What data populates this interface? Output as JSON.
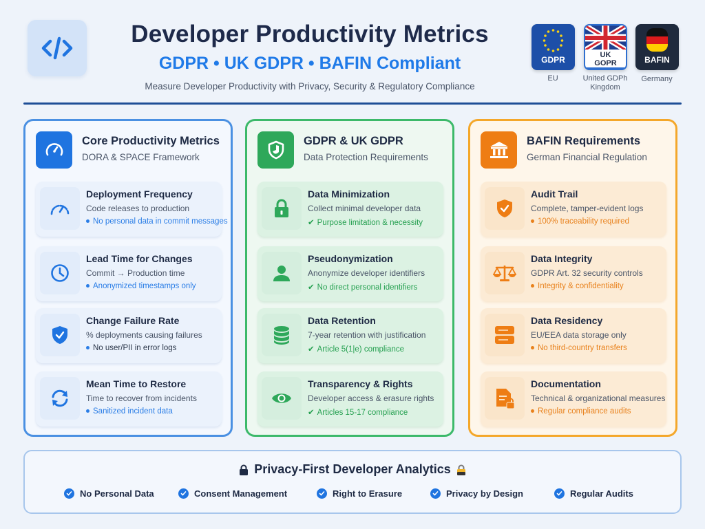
{
  "header": {
    "title": "Developer Productivity Metrics",
    "subtitle": "GDPR • UK GDPR • BAFIN Compliant",
    "tagline": "Measure Developer Productivity with Privacy, Security & Regulatory Compliance",
    "logo_icon": "code-brackets-icon"
  },
  "flags": [
    {
      "label": "GDPR",
      "caption": "EU",
      "icon": "eu-flag-icon"
    },
    {
      "label": "UK GOPR",
      "caption": "United GDPh Kingdom",
      "icon": "uk-flag-icon"
    },
    {
      "label": "BAFIN",
      "caption": "Germany",
      "icon": "germany-flag-icon"
    }
  ],
  "columns": [
    {
      "title": "Core Productivity Metrics",
      "subtitle": "DORA & SPACE Framework",
      "icon": "speedometer-icon",
      "accent": "#1f74e0",
      "cards": [
        {
          "title": "Deployment Frequency",
          "desc": "Code releases to production",
          "note": "No personal data in commit messages",
          "icon": "gauge-icon"
        },
        {
          "title": "Lead Time for Changes",
          "desc": "Commit → Production time",
          "note": "Anonymized timestamps only",
          "icon": "clock-icon"
        },
        {
          "title": "Change Failure Rate",
          "desc": "% deployments causing failures",
          "note": "No user/PII in error logs",
          "icon": "shield-check-icon"
        },
        {
          "title": "Mean Time to Restore",
          "desc": "Time to recover from incidents",
          "note": "Sanitized incident data",
          "icon": "refresh-icon"
        }
      ]
    },
    {
      "title": "GDPR & UK GDPR",
      "subtitle": "Data Protection Requirements",
      "icon": "shield-icon",
      "accent": "#2ea85a",
      "cards": [
        {
          "title": "Data Minimization",
          "desc": "Collect minimal developer data",
          "note": "Purpose limitation & necessity",
          "icon": "lock-icon"
        },
        {
          "title": "Pseudonymization",
          "desc": "Anonymize developer identifiers",
          "note": "No direct personal identifiers",
          "icon": "user-icon"
        },
        {
          "title": "Data Retention",
          "desc": "7-year retention with justification",
          "note": "Article 5(1|e) compliance",
          "icon": "database-icon"
        },
        {
          "title": "Transparency & Rights",
          "desc": "Developer access & erasure rights",
          "note": "Articles 15-17 compliance",
          "icon": "eye-icon"
        }
      ]
    },
    {
      "title": "BAFIN Requirements",
      "subtitle": "German Financial Regulation",
      "icon": "bank-icon",
      "accent": "#ee7d14",
      "cards": [
        {
          "title": "Audit Trail",
          "desc": "Complete, tamper-evident logs",
          "note": "100% traceability required",
          "icon": "shield-check-icon"
        },
        {
          "title": "Data Integrity",
          "desc": "GDPR Art. 32 security controls",
          "note": "Integrity & confidentiality",
          "icon": "scales-icon"
        },
        {
          "title": "Data Residency",
          "desc": "EU/EEA data storage only",
          "note": "No third-country transfers",
          "icon": "server-icon"
        },
        {
          "title": "Documentation",
          "desc": "Technical & organizational measures",
          "note": "Regular compliance audits",
          "icon": "document-lock-icon"
        }
      ]
    }
  ],
  "footer": {
    "title": "Privacy-First Developer Analytics",
    "items": [
      "No Personal Data",
      "Consent Management",
      "Right to Erasure",
      "Privacy by Design",
      "Regular Audits"
    ]
  },
  "colors": {
    "blue": "#1f74e0",
    "green": "#2ea85a",
    "orange": "#ee7d14",
    "navy": "#1e2a4a"
  }
}
